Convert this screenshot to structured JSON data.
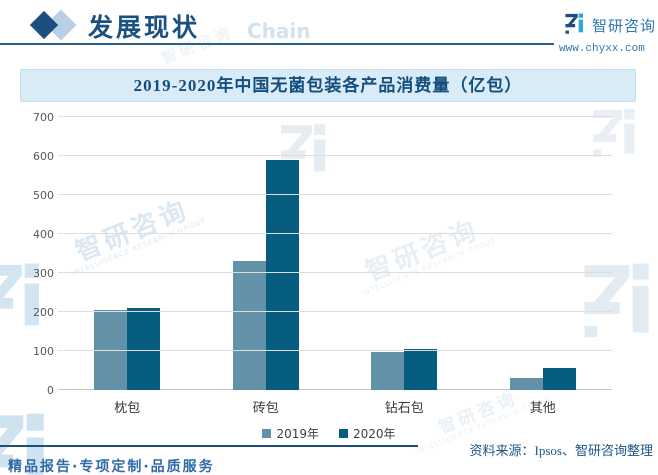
{
  "header": {
    "section_title": "发展现状",
    "watermark_word": "Chain",
    "brand_name": "智研咨询",
    "brand_url": "www.chyxx.com"
  },
  "chart_data": {
    "type": "bar",
    "title": "2019-2020年中国无菌包装各产品消费量（亿包）",
    "categories": [
      "枕包",
      "砖包",
      "钻石包",
      "其他"
    ],
    "series": [
      {
        "name": "2019年",
        "color": "#6391a8",
        "values": [
          205,
          330,
          97,
          31
        ]
      },
      {
        "name": "2020年",
        "color": "#075d80",
        "values": [
          210,
          590,
          105,
          57
        ]
      }
    ],
    "xlabel": "",
    "ylabel": "",
    "ylim": [
      0,
      700
    ],
    "ytick_step": 100,
    "grid": true,
    "legend_position": "bottom"
  },
  "source_line": "资料来源：Ipsos、智研咨询整理",
  "footer": {
    "tagline": "精品报告·专项定制·品质服务"
  },
  "watermark": {
    "text": "智研咨询",
    "subtext": "INTELLIGENCE RESEARCH GROUP"
  }
}
